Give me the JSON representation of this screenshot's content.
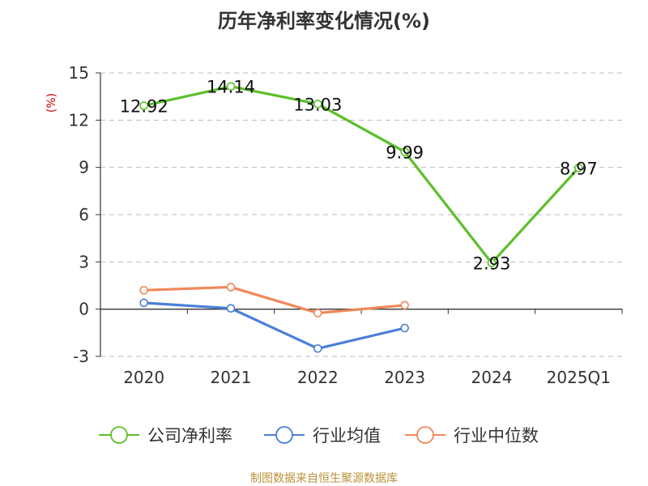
{
  "chart_data": {
    "type": "line",
    "title": "历年净利率变化情况(%)",
    "ylabel": "(%)",
    "xlabel": "",
    "categories": [
      "2020",
      "2021",
      "2022",
      "2023",
      "2024",
      "2025Q1"
    ],
    "ylim": [
      -3,
      15
    ],
    "yticks": [
      -3,
      0,
      3,
      6,
      9,
      12,
      15
    ],
    "ytick_labels": [
      "-3",
      "0",
      "3",
      "6",
      "9",
      "12",
      "15"
    ],
    "grid": true,
    "legend_position": "bottom",
    "series": [
      {
        "name": "公司净利率",
        "color": "#5cbf2a",
        "values": [
          12.92,
          14.14,
          13.03,
          9.99,
          2.93,
          8.97
        ],
        "show_labels": true
      },
      {
        "name": "行业均值",
        "color": "#4a7fd6",
        "values": [
          0.4,
          0.05,
          -2.5,
          -1.2,
          null,
          null
        ],
        "show_labels": false
      },
      {
        "name": "行业中位数",
        "color": "#f0885a",
        "values": [
          1.2,
          1.4,
          -0.25,
          0.25,
          null,
          null
        ],
        "show_labels": false
      }
    ],
    "data_labels": [
      "12.92",
      "14.14",
      "13.03",
      "9.99",
      "2.93",
      "8.97"
    ]
  },
  "source": "制图数据来自恒生聚源数据库"
}
